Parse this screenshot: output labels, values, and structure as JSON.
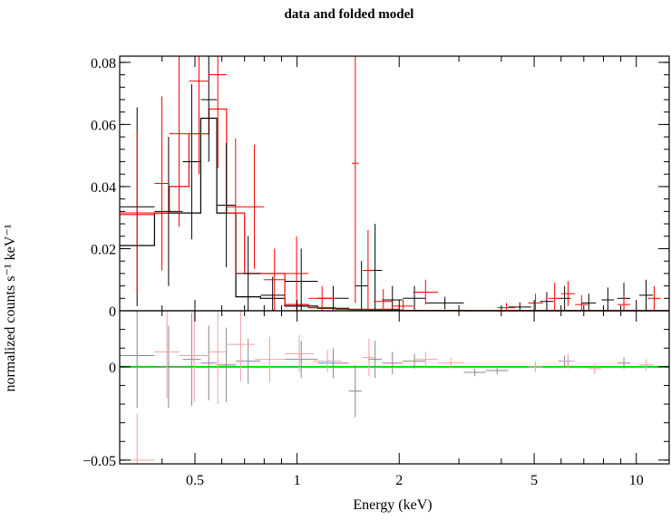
{
  "chart_data": {
    "type": "scatter",
    "title": "data and folded model",
    "xlabel": "Energy (keV)",
    "x_scale": "log",
    "xlim": [
      0.3,
      12.5
    ],
    "x_ticks": [
      0.5,
      1,
      2,
      5,
      10
    ],
    "x_tick_labels": [
      "0.5",
      "1",
      "2",
      "5",
      "10"
    ],
    "panels": [
      {
        "name": "data",
        "ylabel": "normalized counts s⁻¹ keV⁻¹",
        "ylim": [
          0,
          0.082
        ],
        "y_ticks": [
          0,
          0.02,
          0.04,
          0.06,
          0.08
        ],
        "y_tick_labels": [
          "0",
          "0.02",
          "0.04",
          "0.06",
          "0.08"
        ],
        "series": [
          {
            "color": "#000000",
            "points": [
              {
                "x0": 0.3,
                "x1": 0.38,
                "y": 0.0335,
                "e": 0.032
              },
              {
                "x0": 0.38,
                "x1": 0.46,
                "y": 0.032,
                "e": 0.024
              },
              {
                "x0": 0.46,
                "x1": 0.52,
                "y": 0.048,
                "e": 0.025
              },
              {
                "x0": 0.52,
                "x1": 0.58,
                "y": 0.068,
                "e": 0.02
              },
              {
                "x0": 0.58,
                "x1": 0.66,
                "y": 0.034,
                "e": 0.02
              },
              {
                "x0": 0.66,
                "x1": 0.78,
                "y": 0.012,
                "e": 0.012
              },
              {
                "x0": 0.78,
                "x1": 0.92,
                "y": 0.005,
                "e": 0.006
              },
              {
                "x0": 0.92,
                "x1": 1.15,
                "y": 0.0095,
                "e": 0.0105
              },
              {
                "x0": 1.15,
                "x1": 1.42,
                "y": 0.004,
                "e": 0.004
              },
              {
                "x0": 1.48,
                "x1": 1.62,
                "y": 0.008,
                "e": 0.008
              },
              {
                "x0": 1.62,
                "x1": 1.78,
                "y": 0.013,
                "e": 0.015
              },
              {
                "x0": 1.78,
                "x1": 2.05,
                "y": 0.0035,
                "e": 0.0045
              },
              {
                "x0": 2.05,
                "x1": 2.4,
                "y": 0.004,
                "e": 0.004
              },
              {
                "x0": 2.4,
                "x1": 3.1,
                "y": 0.0025,
                "e": 0.002
              },
              {
                "x0": 4.2,
                "x1": 4.9,
                "y": 0.0012,
                "e": 0.0015
              },
              {
                "x0": 5.2,
                "x1": 5.7,
                "y": 0.003,
                "e": 0.003
              },
              {
                "x0": 5.9,
                "x1": 6.4,
                "y": 0.004,
                "e": 0.004
              },
              {
                "x0": 6.9,
                "x1": 7.6,
                "y": 0.0025,
                "e": 0.003
              },
              {
                "x0": 7.9,
                "x1": 8.6,
                "y": 0.0035,
                "e": 0.004
              },
              {
                "x0": 8.8,
                "x1": 9.6,
                "y": 0.004,
                "e": 0.005
              },
              {
                "x0": 10.2,
                "x1": 11.2,
                "y": 0.005,
                "e": 0.005
              }
            ]
          },
          {
            "color": "#ff0000",
            "points": [
              {
                "x0": 0.3,
                "x1": 0.38,
                "y": 0.0315,
                "e": 0.026
              },
              {
                "x0": 0.38,
                "x1": 0.42,
                "y": 0.041,
                "e": 0.028
              },
              {
                "x0": 0.42,
                "x1": 0.48,
                "y": 0.057,
                "e": 0.03
              },
              {
                "x0": 0.48,
                "x1": 0.55,
                "y": 0.074,
                "e": 0.03
              },
              {
                "x0": 0.55,
                "x1": 0.62,
                "y": 0.076,
                "e": 0.03
              },
              {
                "x0": 0.62,
                "x1": 0.7,
                "y": 0.0335,
                "e": 0.022
              },
              {
                "x0": 0.7,
                "x1": 0.8,
                "y": 0.0335,
                "e": 0.02
              },
              {
                "x0": 0.8,
                "x1": 0.92,
                "y": 0.01,
                "e": 0.01
              },
              {
                "x0": 0.92,
                "x1": 1.08,
                "y": 0.012,
                "e": 0.012
              },
              {
                "x0": 1.08,
                "x1": 1.3,
                "y": 0.004,
                "e": 0.004
              },
              {
                "x0": 1.45,
                "x1": 1.52,
                "y": 0.0475,
                "e": 0.045
              },
              {
                "x0": 1.56,
                "x1": 1.68,
                "y": 0.013,
                "e": 0.013
              },
              {
                "x0": 1.68,
                "x1": 1.92,
                "y": 0.003,
                "e": 0.004
              },
              {
                "x0": 1.92,
                "x1": 2.2,
                "y": 0.0015,
                "e": 0.002
              },
              {
                "x0": 2.2,
                "x1": 2.6,
                "y": 0.006,
                "e": 0.004
              },
              {
                "x0": 3.9,
                "x1": 4.4,
                "y": 0.001,
                "e": 0.0015
              },
              {
                "x0": 4.8,
                "x1": 5.3,
                "y": 0.0025,
                "e": 0.003
              },
              {
                "x0": 5.5,
                "x1": 6.0,
                "y": 0.004,
                "e": 0.005
              },
              {
                "x0": 6.0,
                "x1": 6.6,
                "y": 0.0055,
                "e": 0.004
              },
              {
                "x0": 6.6,
                "x1": 7.2,
                "y": 0.002,
                "e": 0.003
              },
              {
                "x0": 8.8,
                "x1": 9.6,
                "y": 0.002,
                "e": 0.003
              },
              {
                "x0": 10.8,
                "x1": 11.8,
                "y": 0.004,
                "e": 0.004
              }
            ]
          }
        ],
        "model_steps": [
          {
            "color": "#000000",
            "edges": [
              0.3,
              0.38,
              0.46,
              0.52,
              0.58,
              0.66,
              0.78,
              0.92,
              1.15,
              1.42,
              1.62,
              2.05,
              3.1,
              12.5
            ],
            "values": [
              0.021,
              0.0315,
              0.0315,
              0.062,
              0.0315,
              0.0045,
              0.004,
              0.0015,
              0.0008,
              0.0004,
              0.0002,
              0.0001,
              0
            ]
          },
          {
            "color": "#ff0000",
            "edges": [
              0.3,
              0.38,
              0.42,
              0.48,
              0.55,
              0.62,
              0.7,
              0.8,
              0.92,
              1.08,
              1.3,
              2.0,
              12.5
            ],
            "values": [
              0.031,
              0.0315,
              0.04,
              0.057,
              0.065,
              0.0315,
              0.012,
              0.012,
              0.002,
              0.001,
              0.0005,
              0.0001
            ]
          }
        ]
      },
      {
        "name": "residuals",
        "ylabel": "normalized counts s⁻¹ keV⁻¹",
        "ylim": [
          -0.052,
          0.03
        ],
        "y_ticks": [
          -0.05,
          0
        ],
        "y_tick_labels": [
          "−0.05",
          "0"
        ],
        "zero_line_color": "#00dd00",
        "series": [
          {
            "color": "#888888",
            "points": [
              {
                "x0": 0.3,
                "x1": 0.38,
                "y": 0.006,
                "e": 0.028
              },
              {
                "x0": 0.38,
                "x1": 0.46,
                "y": 0.0,
                "e": 0.022
              },
              {
                "x0": 0.46,
                "x1": 0.52,
                "y": 0.004,
                "e": 0.025
              },
              {
                "x0": 0.52,
                "x1": 0.58,
                "y": 0.002,
                "e": 0.02
              },
              {
                "x0": 0.58,
                "x1": 0.66,
                "y": 0.001,
                "e": 0.02
              },
              {
                "x0": 0.66,
                "x1": 0.78,
                "y": 0.003,
                "e": 0.012
              },
              {
                "x0": 0.92,
                "x1": 1.15,
                "y": 0.004,
                "e": 0.01
              },
              {
                "x0": 1.15,
                "x1": 1.42,
                "y": 0.002,
                "e": 0.008
              },
              {
                "x0": 1.42,
                "x1": 1.55,
                "y": -0.013,
                "e": 0.014
              },
              {
                "x0": 1.62,
                "x1": 1.78,
                "y": 0.004,
                "e": 0.01
              },
              {
                "x0": 1.78,
                "x1": 2.05,
                "y": 0.002,
                "e": 0.006
              },
              {
                "x0": 2.05,
                "x1": 2.4,
                "y": 0.003,
                "e": 0.004
              },
              {
                "x0": 3.1,
                "x1": 3.6,
                "y": -0.003,
                "e": 0.002
              },
              {
                "x0": 3.6,
                "x1": 4.2,
                "y": -0.002,
                "e": 0.002
              },
              {
                "x0": 5.9,
                "x1": 6.4,
                "y": 0.003,
                "e": 0.003
              },
              {
                "x0": 8.8,
                "x1": 9.6,
                "y": 0.002,
                "e": 0.003
              }
            ]
          },
          {
            "color": "#f0a0a0",
            "points": [
              {
                "x0": 0.3,
                "x1": 0.38,
                "y": -0.05,
                "e": 0.025
              },
              {
                "x0": 0.38,
                "x1": 0.45,
                "y": 0.008,
                "e": 0.025
              },
              {
                "x0": 0.45,
                "x1": 0.55,
                "y": 0.006,
                "e": 0.025
              },
              {
                "x0": 0.55,
                "x1": 0.62,
                "y": 0.008,
                "e": 0.028
              },
              {
                "x0": 0.62,
                "x1": 0.75,
                "y": 0.012,
                "e": 0.02
              },
              {
                "x0": 0.75,
                "x1": 0.92,
                "y": 0.004,
                "e": 0.012
              },
              {
                "x0": 0.92,
                "x1": 1.12,
                "y": 0.007,
                "e": 0.01
              },
              {
                "x0": 1.12,
                "x1": 1.35,
                "y": 0.003,
                "e": 0.006
              },
              {
                "x0": 1.56,
                "x1": 1.7,
                "y": 0.005,
                "e": 0.01
              },
              {
                "x0": 2.2,
                "x1": 2.6,
                "y": 0.004,
                "e": 0.004
              },
              {
                "x0": 2.6,
                "x1": 3.1,
                "y": 0.002,
                "e": 0.003
              },
              {
                "x0": 4.8,
                "x1": 5.3,
                "y": 0.0,
                "e": 0.003
              },
              {
                "x0": 6.0,
                "x1": 6.6,
                "y": 0.003,
                "e": 0.004
              },
              {
                "x0": 7.2,
                "x1": 7.9,
                "y": -0.001,
                "e": 0.003
              },
              {
                "x0": 10.2,
                "x1": 11.2,
                "y": 0.001,
                "e": 0.003
              }
            ]
          }
        ]
      }
    ]
  }
}
